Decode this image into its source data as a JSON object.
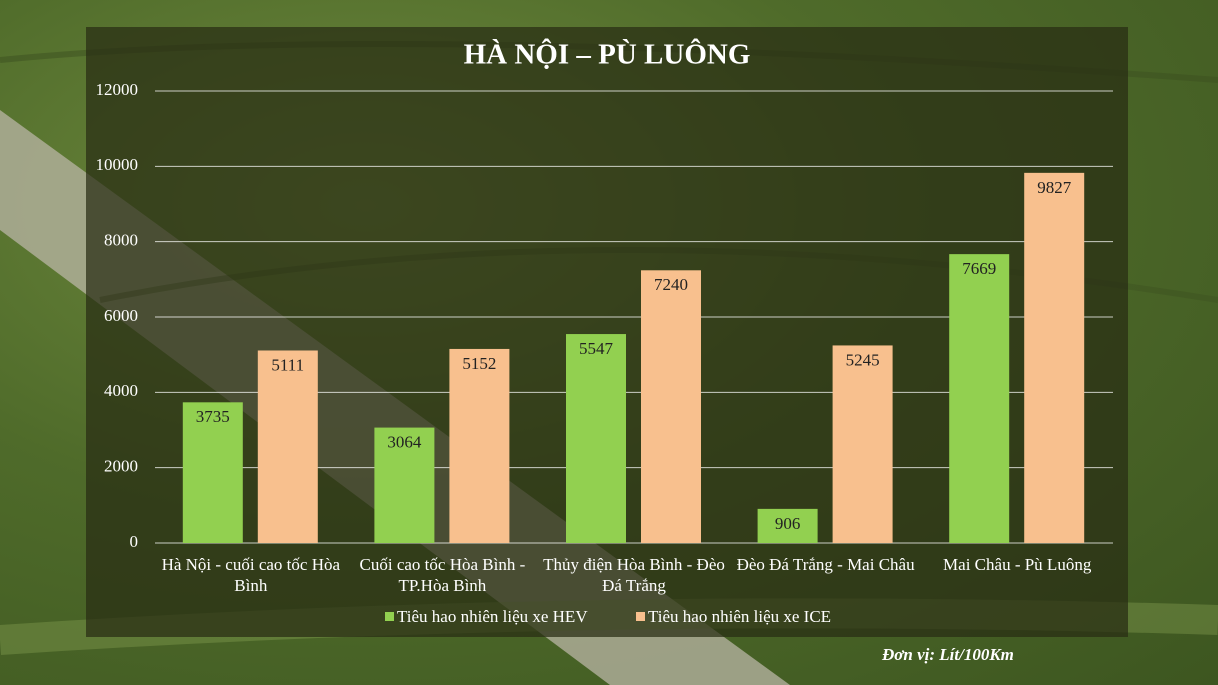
{
  "chart_data": {
    "type": "bar",
    "title": "HÀ NỘI – PÙ LUÔNG",
    "categories": [
      "Hà Nội - cuối cao tốc Hòa Bình",
      "Cuối cao tốc Hòa Bình - TP.Hòa Bình",
      "Thủy điện Hòa Bình - Đèo Đá Trắng",
      "Đèo Đá Trắng - Mai Châu",
      "Mai Châu - Pù Luông"
    ],
    "series": [
      {
        "name": "Tiêu hao nhiên liệu xe HEV",
        "color": "#92d050",
        "values": [
          3735,
          3064,
          5547,
          906,
          7669
        ]
      },
      {
        "name": "Tiêu hao nhiên liệu xe ICE",
        "color": "#f8c08e",
        "values": [
          5111,
          5152,
          7240,
          5245,
          9827
        ]
      }
    ],
    "ylim": [
      0,
      12000
    ],
    "yticks": [
      0,
      2000,
      4000,
      6000,
      8000,
      10000,
      12000
    ],
    "grid": true,
    "legend": "bottom",
    "note": "Đơn vị: Lít/100Km"
  }
}
